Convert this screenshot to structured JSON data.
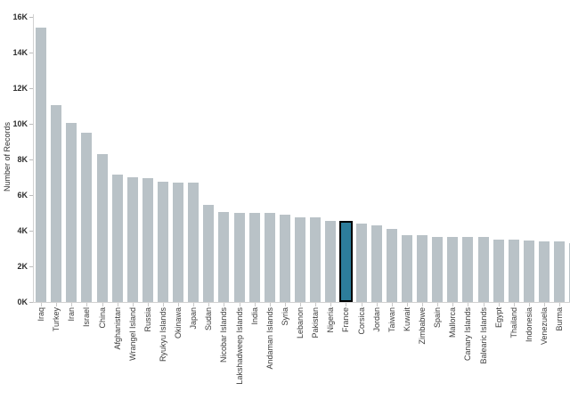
{
  "chart_data": {
    "type": "bar",
    "title": "",
    "xlabel": "",
    "ylabel": "Number of Records",
    "ylim": [
      0,
      16000
    ],
    "ytick_interval": 2000,
    "ytick_labels": [
      "0K",
      "2K",
      "4K",
      "6K",
      "8K",
      "10K",
      "12K",
      "14K",
      "16K"
    ],
    "grid": false,
    "legend": "none",
    "sort": "descending",
    "categories": [
      "Iraq",
      "Turkey",
      "Iran",
      "Israel",
      "China",
      "Afghanistan",
      "Wrangel Island",
      "Russia",
      "Ryukyu Islands",
      "Okinawa",
      "Japan",
      "Sudan",
      "Nicobar Islands",
      "Lakshadweep Islands",
      "India",
      "Andaman Islands",
      "Syria",
      "Lebanon",
      "Pakistan",
      "Nigeria",
      "France",
      "Corsica",
      "Jordan",
      "Taiwan",
      "Kuwait",
      "Zimbabwe",
      "Spain",
      "Mallorca",
      "Canary Islands",
      "Balearic Islands",
      "Egypt",
      "Thailand",
      "Indonesia",
      "Venezuela",
      "Burma"
    ],
    "values": [
      15400,
      11050,
      10050,
      9500,
      8300,
      7150,
      7000,
      6950,
      6750,
      6700,
      6700,
      5450,
      5050,
      5000,
      5000,
      5000,
      4900,
      4750,
      4750,
      4550,
      4500,
      4400,
      4300,
      4100,
      3750,
      3750,
      3650,
      3650,
      3650,
      3650,
      3500,
      3500,
      3450,
      3400,
      3400
    ],
    "highlighted_category": "France",
    "partial_edge_bar": {
      "visible": true,
      "approx_value": 3300
    },
    "colors": {
      "bar": "#b9c2c7",
      "highlight_fill": "#2d7d9b",
      "highlight_border": "#000000",
      "axis_line": "#d2d2d2",
      "tick_mark": "#bdbdbd",
      "tick_label": "#2e2e2e",
      "category_label": "#3c3c3c"
    }
  }
}
